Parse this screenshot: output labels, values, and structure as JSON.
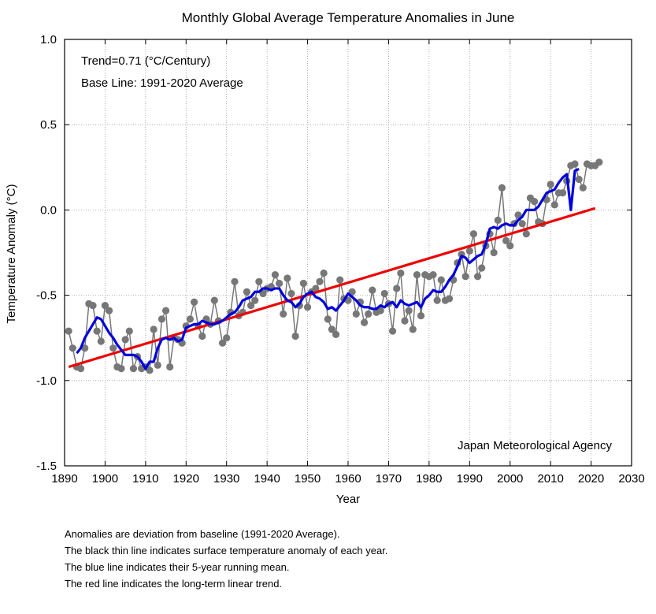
{
  "chart_data": {
    "type": "line",
    "title": "Monthly Global Average Temperature Anomalies in June",
    "xlabel": "Year",
    "ylabel": "Temperature Anomaly (°C)",
    "xlim": [
      1890,
      2030
    ],
    "ylim": [
      -1.5,
      1.0
    ],
    "xticks": [
      1890,
      1900,
      1910,
      1920,
      1930,
      1940,
      1950,
      1960,
      1970,
      1980,
      1990,
      2000,
      2010,
      2020,
      2030
    ],
    "yticks": [
      -1.5,
      -1.0,
      -0.5,
      0.0,
      0.5,
      1.0
    ],
    "ytick_labels": [
      "-1.5",
      "-1.0",
      "-0.5",
      "0.0",
      "0.5",
      "1.0"
    ],
    "grid": true,
    "annotations": {
      "trend": "Trend=0.71 (°C/Century)",
      "baseline": "Base Line: 1991-2020 Average",
      "source": "Japan Meteorological Agency"
    },
    "years": [
      1891,
      1892,
      1893,
      1894,
      1895,
      1896,
      1897,
      1898,
      1899,
      1900,
      1901,
      1902,
      1903,
      1904,
      1905,
      1906,
      1907,
      1908,
      1909,
      1910,
      1911,
      1912,
      1913,
      1914,
      1915,
      1916,
      1917,
      1918,
      1919,
      1920,
      1921,
      1922,
      1923,
      1924,
      1925,
      1926,
      1927,
      1928,
      1929,
      1930,
      1931,
      1932,
      1933,
      1934,
      1935,
      1936,
      1937,
      1938,
      1939,
      1940,
      1941,
      1942,
      1943,
      1944,
      1945,
      1946,
      1947,
      1948,
      1949,
      1950,
      1951,
      1952,
      1953,
      1954,
      1955,
      1956,
      1957,
      1958,
      1959,
      1960,
      1961,
      1962,
      1963,
      1964,
      1965,
      1966,
      1967,
      1968,
      1969,
      1970,
      1971,
      1972,
      1973,
      1974,
      1975,
      1976,
      1977,
      1978,
      1979,
      1980,
      1981,
      1982,
      1983,
      1984,
      1985,
      1986,
      1987,
      1988,
      1989,
      1990,
      1991,
      1992,
      1993,
      1994,
      1995,
      1996,
      1997,
      1998,
      1999,
      2000,
      2001,
      2002,
      2003,
      2004,
      2005,
      2006,
      2007,
      2008,
      2009,
      2010,
      2011,
      2012,
      2013,
      2014,
      2015,
      2016,
      2017,
      2018,
      2019,
      2020,
      2021,
      2022
    ],
    "series": [
      {
        "name": "Annual anomaly",
        "color": "#777777",
        "values": [
          -0.71,
          -0.81,
          -0.92,
          -0.93,
          -0.81,
          -0.55,
          -0.56,
          -0.71,
          -0.77,
          -0.56,
          -0.59,
          -0.81,
          -0.92,
          -0.93,
          -0.76,
          -0.71,
          -0.93,
          -0.86,
          -0.93,
          -0.92,
          -0.94,
          -0.7,
          -0.91,
          -0.64,
          -0.59,
          -0.92,
          -0.75,
          -0.76,
          -0.78,
          -0.68,
          -0.64,
          -0.54,
          -0.68,
          -0.74,
          -0.64,
          -0.67,
          -0.53,
          -0.65,
          -0.78,
          -0.75,
          -0.6,
          -0.42,
          -0.62,
          -0.6,
          -0.48,
          -0.56,
          -0.53,
          -0.42,
          -0.49,
          -0.46,
          -0.45,
          -0.38,
          -0.43,
          -0.61,
          -0.4,
          -0.49,
          -0.74,
          -0.56,
          -0.43,
          -0.57,
          -0.48,
          -0.46,
          -0.42,
          -0.37,
          -0.64,
          -0.7,
          -0.73,
          -0.41,
          -0.52,
          -0.53,
          -0.48,
          -0.61,
          -0.54,
          -0.66,
          -0.61,
          -0.47,
          -0.6,
          -0.59,
          -0.49,
          -0.55,
          -0.71,
          -0.46,
          -0.37,
          -0.65,
          -0.59,
          -0.7,
          -0.38,
          -0.62,
          -0.38,
          -0.39,
          -0.38,
          -0.53,
          -0.41,
          -0.53,
          -0.52,
          -0.41,
          -0.31,
          -0.26,
          -0.39,
          -0.24,
          -0.14,
          -0.39,
          -0.34,
          -0.21,
          -0.14,
          -0.25,
          -0.06,
          0.13,
          -0.18,
          -0.21,
          -0.08,
          -0.03,
          -0.08,
          -0.14,
          0.07,
          0.05,
          -0.07,
          -0.08,
          0.06,
          0.15,
          0.03,
          0.1,
          0.1,
          0.17,
          0.26,
          0.27,
          0.18,
          0.13,
          0.27,
          0.26,
          0.26,
          0.28
        ]
      },
      {
        "name": "5-year running mean",
        "color": "#0000dd",
        "start_year": 1893,
        "values": [
          -0.84,
          -0.81,
          -0.75,
          -0.71,
          -0.67,
          -0.63,
          -0.64,
          -0.68,
          -0.72,
          -0.75,
          -0.79,
          -0.82,
          -0.85,
          -0.85,
          -0.85,
          -0.86,
          -0.89,
          -0.93,
          -0.89,
          -0.89,
          -0.81,
          -0.76,
          -0.75,
          -0.76,
          -0.75,
          -0.77,
          -0.76,
          -0.69,
          -0.68,
          -0.67,
          -0.67,
          -0.65,
          -0.66,
          -0.67,
          -0.67,
          -0.66,
          -0.65,
          -0.63,
          -0.61,
          -0.6,
          -0.57,
          -0.53,
          -0.52,
          -0.51,
          -0.48,
          -0.48,
          -0.46,
          -0.46,
          -0.47,
          -0.46,
          -0.46,
          -0.5,
          -0.53,
          -0.54,
          -0.57,
          -0.55,
          -0.51,
          -0.49,
          -0.48,
          -0.51,
          -0.52,
          -0.54,
          -0.58,
          -0.57,
          -0.59,
          -0.56,
          -0.53,
          -0.49,
          -0.51,
          -0.53,
          -0.56,
          -0.57,
          -0.57,
          -0.58,
          -0.58,
          -0.56,
          -0.57,
          -0.55,
          -0.54,
          -0.57,
          -0.53,
          -0.55,
          -0.56,
          -0.55,
          -0.54,
          -0.57,
          -0.52,
          -0.5,
          -0.47,
          -0.48,
          -0.48,
          -0.45,
          -0.41,
          -0.38,
          -0.33,
          -0.27,
          -0.28,
          -0.31,
          -0.29,
          -0.27,
          -0.26,
          -0.2,
          -0.11,
          -0.1,
          -0.11,
          -0.09,
          -0.08,
          -0.09,
          -0.09,
          -0.06,
          -0.04,
          0.0,
          0.0,
          0.0,
          0.02,
          0.06,
          0.1,
          0.11,
          0.12,
          0.16,
          0.19,
          0.21,
          0,
          0.23,
          0.24
        ]
      },
      {
        "name": "Linear trend",
        "color": "#ee0000",
        "x": [
          1891,
          2021
        ],
        "values": [
          -0.92,
          0.01
        ]
      }
    ]
  },
  "notes": [
    "Anomalies are deviation from baseline (1991-2020 Average).",
    "The black thin line indicates surface temperature anomaly of each year.",
    "The blue line indicates their 5-year running mean.",
    "The red line indicates the long-term linear trend."
  ]
}
